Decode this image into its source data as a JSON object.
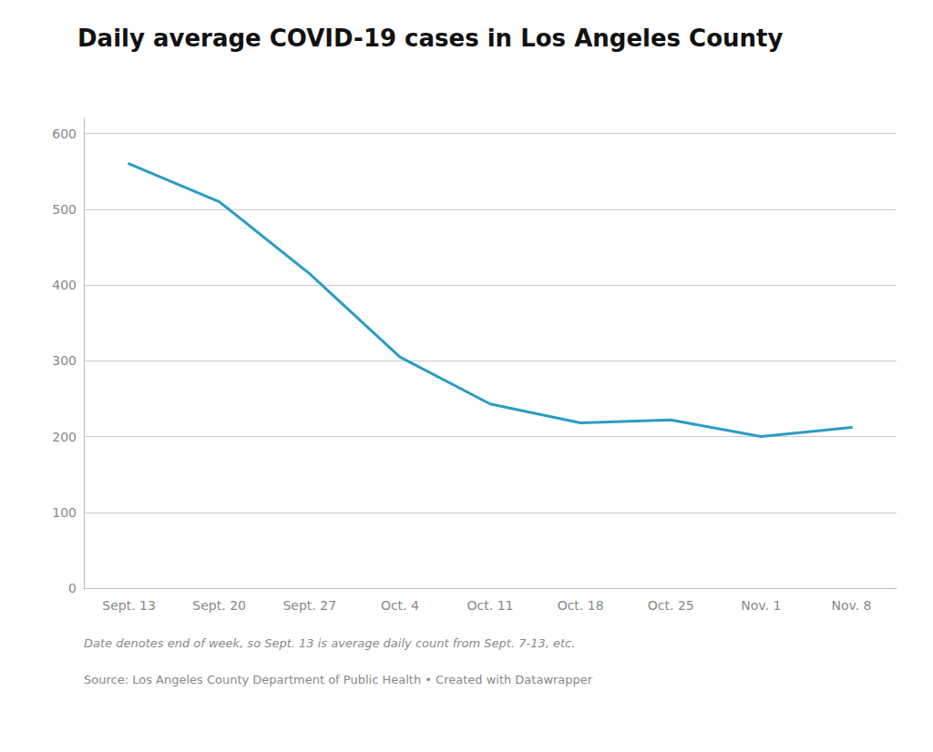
{
  "chart_data": {
    "type": "line",
    "title": "Daily average COVID-19 cases in Los Angeles County",
    "categories": [
      "Sept. 13",
      "Sept. 20",
      "Sept. 27",
      "Oct. 4",
      "Oct. 11",
      "Oct. 18",
      "Oct. 25",
      "Nov. 1",
      "Nov. 8"
    ],
    "values": [
      560,
      510,
      415,
      305,
      243,
      218,
      222,
      200,
      212
    ],
    "color": "#2b9cc4",
    "ylim": [
      0,
      620
    ],
    "yticks": [
      0,
      100,
      200,
      300,
      400,
      500,
      600
    ],
    "grid": true,
    "annotations": [
      "Date denotes end of week, so Sept. 13 is average daily count from Sept. 7-13, etc.",
      "Source: Los Angeles County Department of Public Health • Created with Datawrapper"
    ]
  }
}
